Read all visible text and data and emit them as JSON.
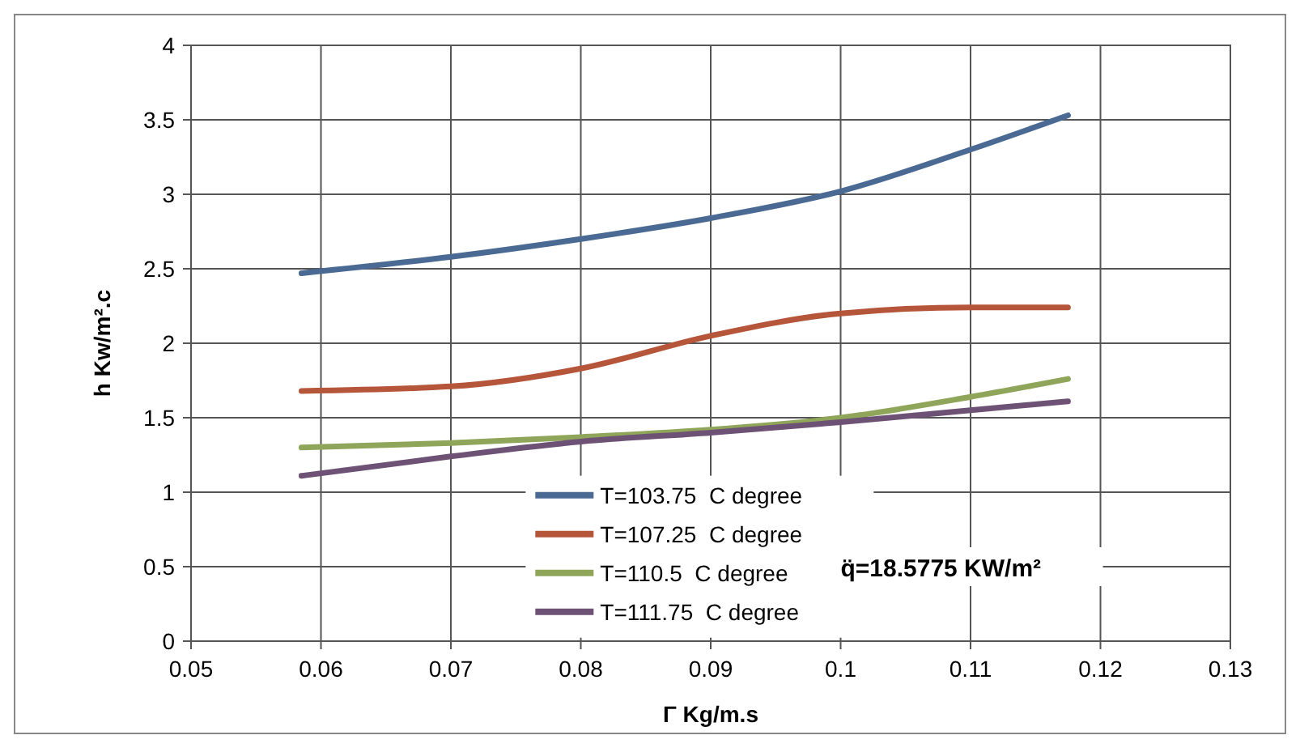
{
  "chart_data": {
    "type": "line",
    "xlabel": "Γ Kg/m.s",
    "ylabel": "h Kw/m².c",
    "xlim": [
      0.05,
      0.13
    ],
    "xticks": [
      0.05,
      0.06,
      0.07,
      0.08,
      0.09,
      0.1,
      0.11,
      0.12,
      0.13
    ],
    "ylim": [
      0,
      4
    ],
    "yticks": [
      0,
      0.5,
      1,
      1.5,
      2,
      2.5,
      3,
      3.5,
      4
    ],
    "grid": true,
    "legend": "bottom",
    "marker": "none",
    "line_style": "solid",
    "x": [
      0.0585,
      0.07,
      0.08,
      0.09,
      0.1,
      0.11,
      0.1175
    ],
    "annotations": [
      "q̈=18.5775 KW/m²"
    ],
    "series": [
      {
        "name": "T=103.75  C degree",
        "color": "#4a6a94",
        "values": [
          2.47,
          2.58,
          2.7,
          2.84,
          3.02,
          3.3,
          3.53
        ]
      },
      {
        "name": "T=107.25  C degree",
        "color": "#b5553a",
        "values": [
          1.68,
          1.71,
          1.83,
          2.05,
          2.2,
          2.24,
          2.24
        ]
      },
      {
        "name": "T=110.5  C degree",
        "color": "#8fa65a",
        "values": [
          1.3,
          1.33,
          1.37,
          1.42,
          1.5,
          1.64,
          1.76
        ]
      },
      {
        "name": "T=111.75  C degree",
        "color": "#6e5275",
        "values": [
          1.11,
          1.24,
          1.34,
          1.4,
          1.47,
          1.55,
          1.61
        ]
      }
    ]
  }
}
